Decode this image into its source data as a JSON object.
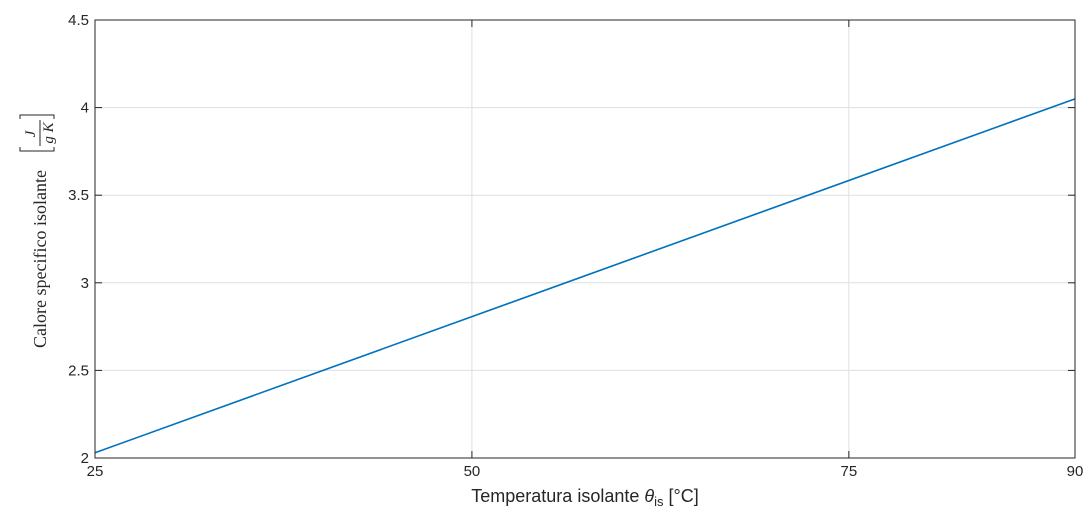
{
  "chart_data": {
    "type": "line",
    "title": "",
    "xlabel": {
      "prefix": "Temperatura  isolante  ",
      "symbol": "θ",
      "subscript": "is",
      "suffix": "  [°C]"
    },
    "ylabel": {
      "text": "Calore specifico isolante",
      "unit_numerator": "J",
      "unit_denominator": "g K"
    },
    "xlim": [
      25,
      90
    ],
    "ylim": [
      2,
      4.5
    ],
    "xticks": [
      25,
      50,
      75,
      90
    ],
    "xtick_labels": [
      "25",
      "50",
      "75",
      "90"
    ],
    "yticks": [
      2,
      2.5,
      3,
      3.5,
      4,
      4.5
    ],
    "ytick_labels": [
      "2",
      "2.5",
      "3",
      "3.5",
      "4",
      "4.5"
    ],
    "grid": true,
    "legend": "none",
    "series": [
      {
        "color": "#0072BD",
        "x": [
          25,
          90
        ],
        "y": [
          2.03,
          4.05
        ]
      }
    ]
  }
}
